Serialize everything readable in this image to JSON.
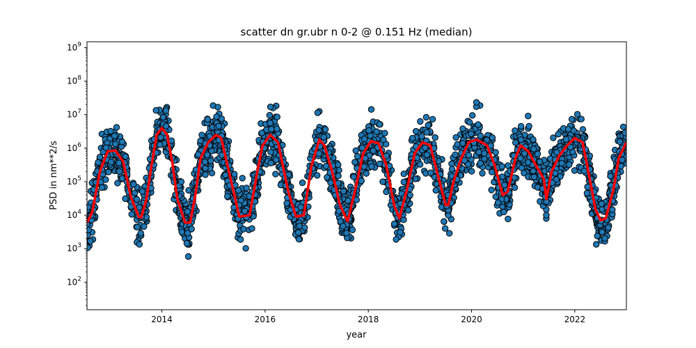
{
  "chart_data": {
    "type": "scatter",
    "title": "scatter dn gr.ubr n 0-2 @ 0.151 Hz (median)",
    "xlabel": "year",
    "ylabel": "PSD in nm**2/s",
    "xlim": [
      2012.55,
      2023.0
    ],
    "ylim": [
      15,
      1500000000
    ],
    "yscale": "log",
    "grid": false,
    "xticks": [
      2014,
      2016,
      2018,
      2020,
      2022
    ],
    "xtick_labels": [
      "2014",
      "2016",
      "2018",
      "2020",
      "2022"
    ],
    "yticks": [
      100,
      1000,
      10000,
      100000,
      1000000,
      10000000,
      100000000,
      1000000000
    ],
    "ytick_labels": [
      {
        "base": "10",
        "exp": "2"
      },
      {
        "base": "10",
        "exp": "3"
      },
      {
        "base": "10",
        "exp": "4"
      },
      {
        "base": "10",
        "exp": "5"
      },
      {
        "base": "10",
        "exp": "6"
      },
      {
        "base": "10",
        "exp": "7"
      },
      {
        "base": "10",
        "exp": "8"
      },
      {
        "base": "10",
        "exp": "9"
      }
    ],
    "scatter_color": "#1f77b4",
    "scatter_edge": "#000000",
    "median_color": "#ff0000",
    "median": {
      "x": [
        2012.55,
        2012.65,
        2012.8,
        2012.95,
        2013.1,
        2013.25,
        2013.4,
        2013.55,
        2013.6,
        2013.7,
        2013.8,
        2013.9,
        2014.0,
        2014.1,
        2014.2,
        2014.3,
        2014.45,
        2014.55,
        2014.65,
        2014.75,
        2014.9,
        2015.05,
        2015.15,
        2015.3,
        2015.45,
        2015.5,
        2015.7,
        2015.85,
        2015.95,
        2016.1,
        2016.25,
        2016.45,
        2016.6,
        2016.75,
        2016.9,
        2017.05,
        2017.15,
        2017.3,
        2017.45,
        2017.6,
        2017.75,
        2017.9,
        2018.05,
        2018.2,
        2018.35,
        2018.5,
        2018.6,
        2018.75,
        2018.9,
        2019.05,
        2019.2,
        2019.35,
        2019.5,
        2019.55,
        2019.65,
        2019.8,
        2019.95,
        2020.1,
        2020.3,
        2020.45,
        2020.6,
        2020.7,
        2020.85,
        2020.95,
        2021.1,
        2021.25,
        2021.4,
        2021.45,
        2021.55,
        2021.7,
        2021.85,
        2022.0,
        2022.15,
        2022.3,
        2022.4,
        2022.5,
        2022.6,
        2022.75,
        2022.85,
        2023.0
      ],
      "y": [
        6000,
        12000,
        200000,
        800000,
        850000,
        400000,
        35000,
        9000,
        8500,
        30000,
        300000,
        2500000,
        4000000,
        2500000,
        400000,
        30000,
        6000,
        6000,
        40000,
        500000,
        1500000,
        2500000,
        2000000,
        200000,
        20000,
        9000,
        10000,
        200000,
        1200000,
        2500000,
        1500000,
        50000,
        9000,
        10000,
        300000,
        1800000,
        1200000,
        200000,
        20000,
        6500,
        60000,
        700000,
        1600000,
        1400000,
        300000,
        20000,
        8000,
        60000,
        700000,
        1500000,
        1200000,
        150000,
        20000,
        20000,
        100000,
        500000,
        1500000,
        1800000,
        1200000,
        300000,
        40000,
        50000,
        500000,
        1200000,
        800000,
        300000,
        120000,
        30000,
        200000,
        600000,
        1200000,
        2000000,
        1500000,
        100000,
        15000,
        7000,
        8000,
        60000,
        500000,
        1500000
      ]
    }
  }
}
